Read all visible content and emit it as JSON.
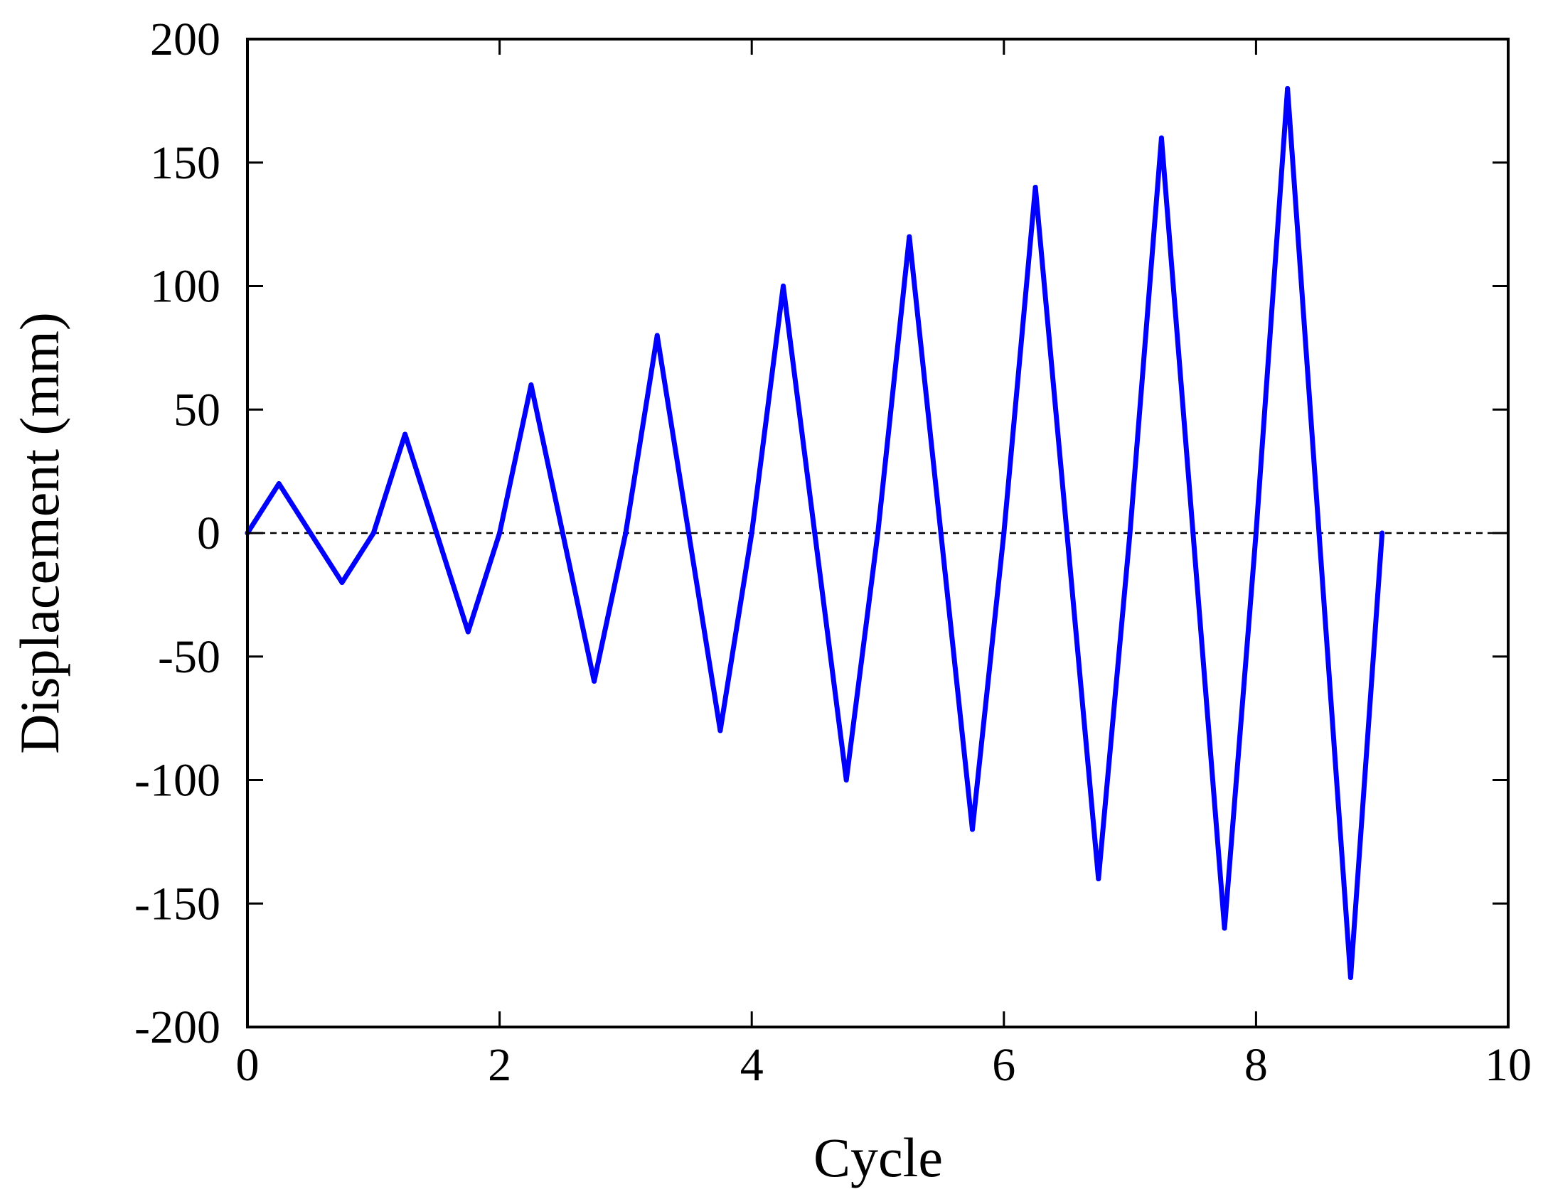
{
  "chart_data": {
    "type": "line",
    "title": "",
    "xlabel": "Cycle",
    "ylabel": "Displacement (mm)",
    "xlim": [
      0,
      10
    ],
    "ylim": [
      -200,
      200
    ],
    "xticks": [
      0,
      2,
      4,
      6,
      8,
      10
    ],
    "yticks": [
      200,
      150,
      100,
      50,
      0,
      -50,
      -100,
      -150,
      -200
    ],
    "grid": false,
    "legend": "none",
    "reference_line": {
      "y": 0,
      "style": "dashed",
      "color": "#000000"
    },
    "series": [
      {
        "color": "#0000ff",
        "x": [
          0,
          0.25,
          0.5,
          0.75,
          1.0,
          1.25,
          1.5,
          1.75,
          2.0,
          2.25,
          2.5,
          2.75,
          3.0,
          3.25,
          3.5,
          3.75,
          4.0,
          4.25,
          4.5,
          4.75,
          5.0,
          5.25,
          5.5,
          5.75,
          6.0,
          6.25,
          6.5,
          6.75,
          7.0,
          7.25,
          7.5,
          7.75,
          8.0,
          8.25,
          8.5,
          8.75,
          9.0
        ],
        "y": [
          0,
          20,
          0,
          -20,
          0,
          40,
          0,
          -40,
          0,
          60,
          0,
          -60,
          0,
          80,
          0,
          -80,
          0,
          100,
          0,
          -100,
          0,
          120,
          0,
          -120,
          0,
          140,
          0,
          -140,
          0,
          160,
          0,
          -160,
          0,
          180,
          0,
          -180,
          0
        ]
      }
    ]
  }
}
